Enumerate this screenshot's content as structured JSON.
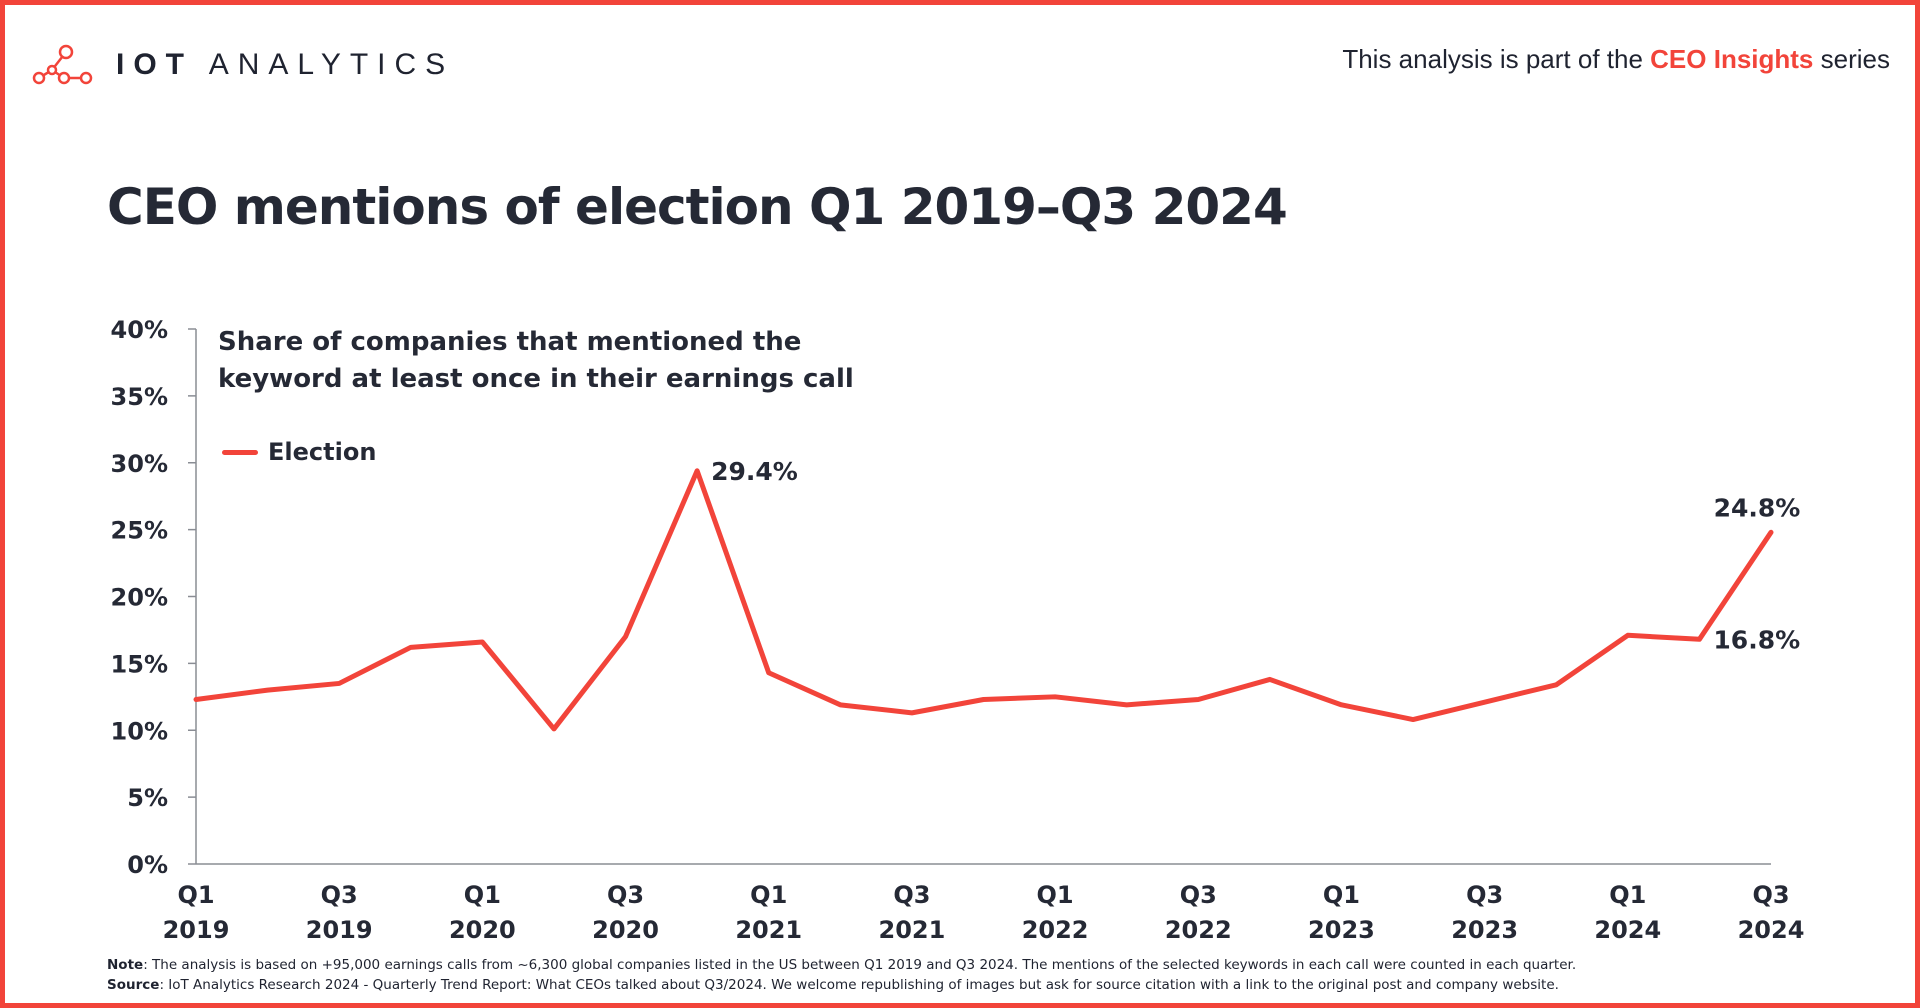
{
  "header": {
    "brand_left": "IOT",
    "brand_right": "ANALYTICS",
    "series_prefix": "This analysis is part of the",
    "series_name": "CEO Insights",
    "series_suffix": "series",
    "logo_icon": "molecule-network-icon"
  },
  "colors": {
    "accent": "#f2443a",
    "text": "#252935"
  },
  "chart_data": {
    "type": "line",
    "title": "CEO mentions of election Q1 2019–Q3 2024",
    "subtitle": "Share of companies that mentioned the keyword at least once in their earnings call",
    "legend": "top-left",
    "xlabel": "",
    "ylabel": "",
    "ylim": [
      0,
      40
    ],
    "yticks": [
      "0%",
      "5%",
      "10%",
      "15%",
      "20%",
      "25%",
      "30%",
      "35%",
      "40%"
    ],
    "ytick_values": [
      0,
      5,
      10,
      15,
      20,
      25,
      30,
      35,
      40
    ],
    "categories": [
      "Q1 2019",
      "Q2 2019",
      "Q3 2019",
      "Q4 2019",
      "Q1 2020",
      "Q2 2020",
      "Q3 2020",
      "Q4 2020",
      "Q1 2021",
      "Q2 2021",
      "Q3 2021",
      "Q4 2021",
      "Q1 2022",
      "Q2 2022",
      "Q3 2022",
      "Q4 2022",
      "Q1 2023",
      "Q2 2023",
      "Q3 2023",
      "Q4 2023",
      "Q1 2024",
      "Q2 2024",
      "Q3 2024"
    ],
    "x_tick_labels": [
      {
        "index": 0,
        "top": "Q1",
        "bottom": "2019"
      },
      {
        "index": 2,
        "top": "Q3",
        "bottom": "2019"
      },
      {
        "index": 4,
        "top": "Q1",
        "bottom": "2020"
      },
      {
        "index": 6,
        "top": "Q3",
        "bottom": "2020"
      },
      {
        "index": 8,
        "top": "Q1",
        "bottom": "2021"
      },
      {
        "index": 10,
        "top": "Q3",
        "bottom": "2021"
      },
      {
        "index": 12,
        "top": "Q1",
        "bottom": "2022"
      },
      {
        "index": 14,
        "top": "Q3",
        "bottom": "2022"
      },
      {
        "index": 16,
        "top": "Q1",
        "bottom": "2023"
      },
      {
        "index": 18,
        "top": "Q3",
        "bottom": "2023"
      },
      {
        "index": 20,
        "top": "Q1",
        "bottom": "2024"
      },
      {
        "index": 22,
        "top": "Q3",
        "bottom": "2024"
      }
    ],
    "series": [
      {
        "name": "Election",
        "values": [
          12.3,
          13.0,
          13.5,
          16.2,
          16.6,
          10.1,
          17.0,
          29.4,
          14.3,
          11.9,
          11.3,
          12.3,
          12.5,
          11.9,
          12.3,
          13.8,
          11.9,
          10.8,
          12.1,
          13.4,
          17.1,
          16.8,
          24.8
        ]
      }
    ],
    "annotations": [
      {
        "index": 7,
        "text": "29.4%",
        "position": "right"
      },
      {
        "index": 21,
        "text": "16.8%",
        "position": "right"
      },
      {
        "index": 22,
        "text": "24.8%",
        "position": "above"
      }
    ]
  },
  "footer": {
    "note_label": "Note",
    "note_text": ": The analysis is based on +95,000 earnings calls from ~6,300 global companies listed in the US between Q1 2019 and Q3 2024. The mentions of the selected keywords in each call were counted in each quarter.",
    "source_label": "Source",
    "source_text": ": IoT Analytics Research 2024 - Quarterly Trend Report: What CEOs talked about Q3/2024. We welcome republishing of images but ask for source citation with a link to the original post and company website."
  }
}
